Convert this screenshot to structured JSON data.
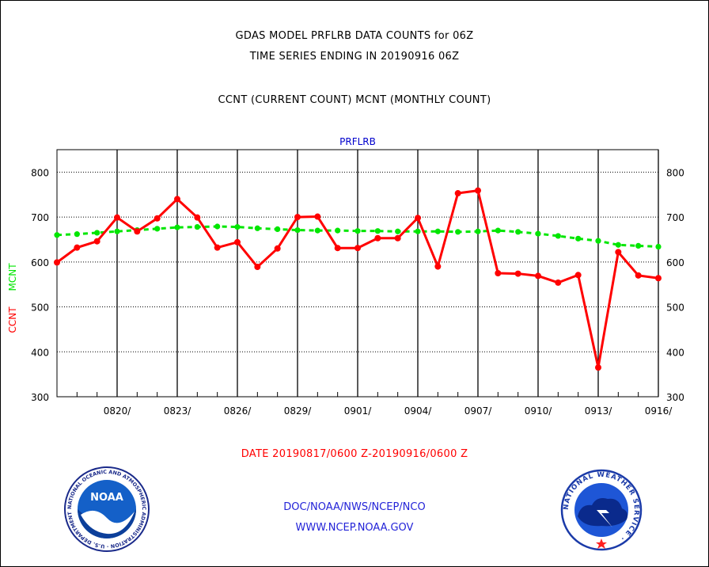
{
  "header": {
    "line1": "GDAS MODEL PRFLRB DATA COUNTS for 06Z",
    "line2": "TIME SERIES ENDING IN 20190916 06Z",
    "line3": "CCNT (CURRENT COUNT) MCNT (MONTHLY COUNT)"
  },
  "footer": {
    "date_range": "DATE 20190817/0600 Z-20190916/0600 Z",
    "org": "DOC/NOAA/NWS/NCEP/NCO",
    "url": "WWW.NCEP.NOAA.GOV"
  },
  "logos": {
    "noaa_text": "NOAA",
    "noaa_ring": "NATIONAL OCEANIC AND ATMOSPHERIC ADMINISTRATION · U.S. DEPARTMENT OF COMMERCE ·",
    "nws_ring": "NATIONAL WEATHER SERVICE ·"
  },
  "colors": {
    "ccnt": "#ff0000",
    "mcnt": "#00e600",
    "title": "#0000cc",
    "date_text": "#ff0000",
    "link_text": "#2323d8"
  },
  "chart_data": {
    "type": "line",
    "title": "PRFLRB",
    "ylabel_left": "CCNT",
    "ylabel_right": "MCNT",
    "ylim": [
      300,
      850
    ],
    "yticks": [
      300,
      400,
      500,
      600,
      700,
      800
    ],
    "x_tick_labels": [
      "0820/",
      "0823/",
      "0826/",
      "0829/",
      "0901/",
      "0904/",
      "0907/",
      "0910/",
      "0913/",
      "0916/"
    ],
    "x_tick_days": [
      3,
      6,
      9,
      12,
      15,
      18,
      21,
      24,
      27,
      30
    ],
    "x_days": [
      0,
      1,
      2,
      3,
      4,
      5,
      6,
      7,
      8,
      9,
      10,
      11,
      12,
      13,
      14,
      15,
      16,
      17,
      18,
      19,
      20,
      21,
      22,
      23,
      24,
      25,
      26,
      27,
      28,
      29,
      30
    ],
    "grid": true,
    "series": [
      {
        "name": "CCNT",
        "values": [
          599,
          632,
          646,
          699,
          668,
          697,
          740,
          699,
          632,
          644,
          589,
          630,
          700,
          701,
          631,
          631,
          653,
          653,
          698,
          590,
          753,
          759,
          575,
          574,
          569,
          554,
          571,
          365,
          622,
          570,
          564
        ]
      },
      {
        "name": "MCNT",
        "values": [
          660,
          662,
          665,
          668,
          671,
          674,
          677,
          678,
          679,
          678,
          675,
          673,
          671,
          670,
          670,
          669,
          669,
          668,
          668,
          668,
          667,
          668,
          670,
          667,
          663,
          658,
          652,
          647,
          638,
          636,
          634
        ]
      }
    ]
  }
}
